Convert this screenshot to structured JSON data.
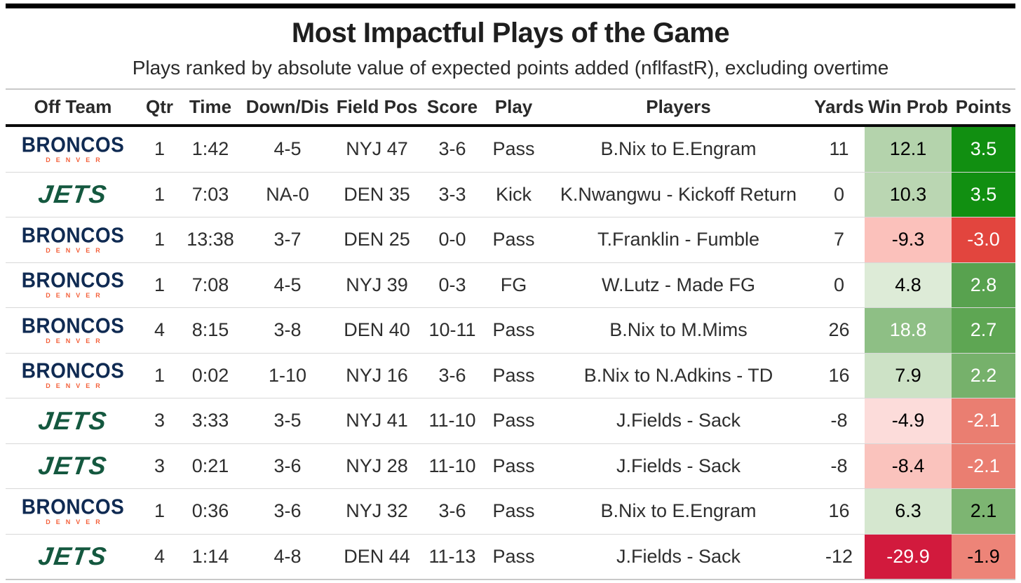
{
  "header": {
    "title": "Most Impactful Plays of the Game",
    "subtitle": "Plays ranked by absolute value of expected points added (nflfastR), excluding overtime"
  },
  "teams": {
    "broncos": {
      "wordmark": "BRONCOS",
      "sub": "DENVER",
      "name_color": "#0f2a52",
      "sub_color": "#f4613b"
    },
    "jets": {
      "wordmark": "JETS",
      "name_color": "#14583f"
    }
  },
  "chart_data": {
    "type": "table",
    "title": "Most Impactful Plays of the Game",
    "subtitle": "Plays ranked by absolute value of expected points added (nflfastR), excluding overtime",
    "columns": [
      {
        "key": "off-team",
        "label": "Off Team"
      },
      {
        "key": "qtr",
        "label": "Qtr"
      },
      {
        "key": "time",
        "label": "Time"
      },
      {
        "key": "down-dis",
        "label": "Down/Dis"
      },
      {
        "key": "field-pos",
        "label": "Field Pos"
      },
      {
        "key": "score",
        "label": "Score"
      },
      {
        "key": "play",
        "label": "Play"
      },
      {
        "key": "players",
        "label": "Players"
      },
      {
        "key": "yards",
        "label": "Yards"
      },
      {
        "key": "win-prob",
        "label": "Win Prob"
      },
      {
        "key": "points",
        "label": "Points"
      }
    ],
    "rows": [
      {
        "team": "broncos",
        "qtr": "1",
        "time": "1:42",
        "down_dis": "4-5",
        "field_pos": "NYJ 47",
        "score": "3-6",
        "play": "Pass",
        "players": "B.Nix to E.Engram",
        "yards": "11",
        "win_prob": {
          "value": "12.1",
          "bg": "#b4d3ac",
          "text": "#000000"
        },
        "points": {
          "value": "3.5",
          "bg": "#118f11",
          "text": "#ffffff"
        }
      },
      {
        "team": "jets",
        "qtr": "1",
        "time": "7:03",
        "down_dis": "NA-0",
        "field_pos": "DEN 35",
        "score": "3-3",
        "play": "Kick",
        "players": "K.Nwangwu - Kickoff Return",
        "yards": "0",
        "win_prob": {
          "value": "10.3",
          "bg": "#bad6b2",
          "text": "#000000"
        },
        "points": {
          "value": "3.5",
          "bg": "#118f11",
          "text": "#ffffff"
        }
      },
      {
        "team": "broncos",
        "qtr": "1",
        "time": "13:38",
        "down_dis": "3-7",
        "field_pos": "DEN 25",
        "score": "0-0",
        "play": "Pass",
        "players": "T.Franklin - Fumble",
        "yards": "7",
        "win_prob": {
          "value": "-9.3",
          "bg": "#fbc1bb",
          "text": "#000000"
        },
        "points": {
          "value": "-3.0",
          "bg": "#e2453e",
          "text": "#ffffff"
        }
      },
      {
        "team": "broncos",
        "qtr": "1",
        "time": "7:08",
        "down_dis": "4-5",
        "field_pos": "NYJ 39",
        "score": "0-3",
        "play": "FG",
        "players": "W.Lutz - Made FG",
        "yards": "0",
        "win_prob": {
          "value": "4.8",
          "bg": "#ddebd7",
          "text": "#000000"
        },
        "points": {
          "value": "2.8",
          "bg": "#58a24f",
          "text": "#ffffff"
        }
      },
      {
        "team": "broncos",
        "qtr": "4",
        "time": "8:15",
        "down_dis": "3-8",
        "field_pos": "DEN 40",
        "score": "10-11",
        "play": "Pass",
        "players": "B.Nix to M.Mims",
        "yards": "26",
        "win_prob": {
          "value": "18.8",
          "bg": "#8ebf85",
          "text": "#ffffff"
        },
        "points": {
          "value": "2.7",
          "bg": "#5ea653",
          "text": "#ffffff"
        }
      },
      {
        "team": "broncos",
        "qtr": "1",
        "time": "0:02",
        "down_dis": "1-10",
        "field_pos": "NYJ 16",
        "score": "3-6",
        "play": "Pass",
        "players": "B.Nix to N.Adkins - TD",
        "yards": "16",
        "win_prob": {
          "value": "7.9",
          "bg": "#cde2c6",
          "text": "#000000"
        },
        "points": {
          "value": "2.2",
          "bg": "#76b16b",
          "text": "#ffffff"
        }
      },
      {
        "team": "jets",
        "qtr": "3",
        "time": "3:33",
        "down_dis": "3-5",
        "field_pos": "NYJ 41",
        "score": "11-10",
        "play": "Pass",
        "players": "J.Fields - Sack",
        "yards": "-8",
        "win_prob": {
          "value": "-4.9",
          "bg": "#fcdcda",
          "text": "#000000"
        },
        "points": {
          "value": "-2.1",
          "bg": "#ea7e71",
          "text": "#ffffff"
        }
      },
      {
        "team": "jets",
        "qtr": "3",
        "time": "0:21",
        "down_dis": "3-6",
        "field_pos": "NYJ 28",
        "score": "11-10",
        "play": "Pass",
        "players": "J.Fields - Sack",
        "yards": "-8",
        "win_prob": {
          "value": "-8.4",
          "bg": "#fac3bd",
          "text": "#000000"
        },
        "points": {
          "value": "-2.1",
          "bg": "#ea7e71",
          "text": "#ffffff"
        }
      },
      {
        "team": "broncos",
        "qtr": "1",
        "time": "0:36",
        "down_dis": "3-6",
        "field_pos": "NYJ 32",
        "score": "3-6",
        "play": "Pass",
        "players": "B.Nix to E.Engram",
        "yards": "16",
        "win_prob": {
          "value": "6.3",
          "bg": "#d5e7cf",
          "text": "#000000"
        },
        "points": {
          "value": "2.1",
          "bg": "#7db572",
          "text": "#000000"
        }
      },
      {
        "team": "jets",
        "qtr": "4",
        "time": "1:14",
        "down_dis": "4-8",
        "field_pos": "DEN 44",
        "score": "11-13",
        "play": "Pass",
        "players": "J.Fields - Sack",
        "yards": "-12",
        "win_prob": {
          "value": "-29.9",
          "bg": "#d21a3d",
          "text": "#ffffff"
        },
        "points": {
          "value": "-1.9",
          "bg": "#ed8478",
          "text": "#000000"
        }
      }
    ]
  }
}
